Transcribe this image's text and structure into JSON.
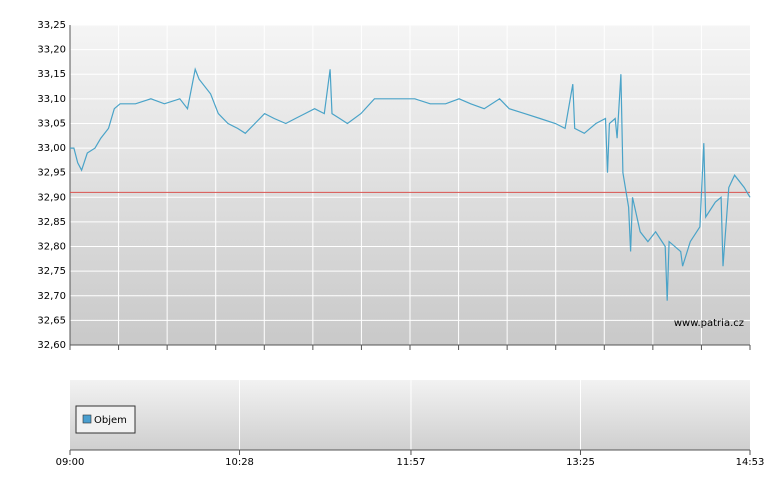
{
  "chart_data": [
    {
      "type": "line",
      "annotation": "www.patria.cz",
      "x": [
        "09:00",
        "09:02",
        "09:04",
        "09:06",
        "09:09",
        "09:13",
        "09:16",
        "09:20",
        "09:23",
        "09:26",
        "09:34",
        "09:42",
        "09:49",
        "09:57",
        "10:01",
        "10:05",
        "10:07",
        "10:13",
        "10:17",
        "10:22",
        "10:27",
        "10:31",
        "10:36",
        "10:41",
        "10:46",
        "10:52",
        "10:57",
        "11:02",
        "11:07",
        "11:12",
        "11:15",
        "11:16",
        "11:20",
        "11:24",
        "11:31",
        "11:38",
        "11:46",
        "11:54",
        "11:59",
        "12:07",
        "12:15",
        "12:22",
        "12:28",
        "12:35",
        "12:43",
        "12:48",
        "12:56",
        "13:04",
        "13:12",
        "13:17",
        "13:21",
        "13:22",
        "13:27",
        "13:33",
        "13:38",
        "13:39",
        "13:40",
        "13:43",
        "13:44",
        "13:46",
        "13:47",
        "13:50",
        "13:51",
        "13:52",
        "13:56",
        "14:00",
        "14:04",
        "14:09",
        "14:10",
        "14:11",
        "14:17",
        "14:18",
        "14:22",
        "14:27",
        "14:29",
        "14:30",
        "14:35",
        "14:38",
        "14:39",
        "14:42",
        "14:45",
        "14:50",
        "14:53"
      ],
      "series": [
        {
          "color": "#4aa3c8",
          "values": [
            33.0,
            33.0,
            32.97,
            32.955,
            32.99,
            33.0,
            33.02,
            33.04,
            33.08,
            33.09,
            33.09,
            33.1,
            33.09,
            33.1,
            33.08,
            33.16,
            33.14,
            33.11,
            33.07,
            33.05,
            33.04,
            33.03,
            33.05,
            33.07,
            33.06,
            33.05,
            33.06,
            33.07,
            33.08,
            33.07,
            33.16,
            33.07,
            33.06,
            33.05,
            33.07,
            33.1,
            33.1,
            33.1,
            33.1,
            33.09,
            33.09,
            33.1,
            33.09,
            33.08,
            33.1,
            33.08,
            33.07,
            33.06,
            33.05,
            33.04,
            33.13,
            33.04,
            33.03,
            33.05,
            33.06,
            32.95,
            33.05,
            33.06,
            33.02,
            33.15,
            32.95,
            32.88,
            32.79,
            32.9,
            32.83,
            32.81,
            32.83,
            32.8,
            32.69,
            32.81,
            32.79,
            32.76,
            32.81,
            32.84,
            33.01,
            32.86,
            32.89,
            32.9,
            32.76,
            32.92,
            32.945,
            32.92,
            32.9
          ]
        }
      ],
      "reference_line": {
        "value": 32.91,
        "color": "#d9534f"
      },
      "ylim": [
        32.6,
        33.25
      ],
      "yticks": [
        {
          "value": 32.6,
          "label": "32,60"
        },
        {
          "value": 32.65,
          "label": "32,65"
        },
        {
          "value": 32.7,
          "label": "32,70"
        },
        {
          "value": 32.75,
          "label": "32,75"
        },
        {
          "value": 32.8,
          "label": "32,80"
        },
        {
          "value": 32.85,
          "label": "32,85"
        },
        {
          "value": 32.9,
          "label": "32,90"
        },
        {
          "value": 32.95,
          "label": "32,95"
        },
        {
          "value": 33.0,
          "label": "33,00"
        },
        {
          "value": 33.05,
          "label": "33,05"
        },
        {
          "value": 33.1,
          "label": "33,10"
        },
        {
          "value": 33.15,
          "label": "33,15"
        },
        {
          "value": 33.2,
          "label": "33,20"
        },
        {
          "value": 33.25,
          "label": "33,25"
        }
      ],
      "xlim": [
        "09:00",
        "14:53"
      ],
      "grid": true
    },
    {
      "type": "bar",
      "series": [
        {
          "name": "Objem",
          "color": "#4a9fd0"
        }
      ],
      "xlim": [
        "09:00",
        "14:53"
      ],
      "xticks": [
        "09:00",
        "10:28",
        "11:57",
        "13:25",
        "14:53"
      ],
      "grid": true
    }
  ]
}
